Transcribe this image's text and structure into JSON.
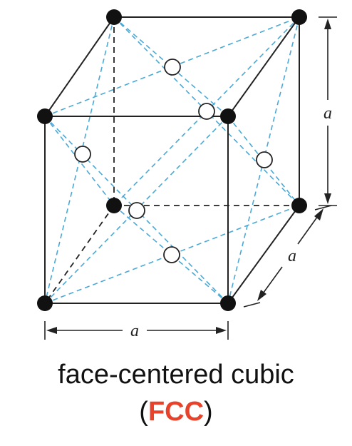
{
  "dimension_labels": {
    "bottom": "a",
    "right_vertical": "a",
    "depth": "a"
  },
  "caption": {
    "line1": "face-centered cubic",
    "open_paren": "(",
    "acronym": "FCC",
    "close_paren": ")"
  },
  "colors": {
    "edges": "#222222",
    "dashed_diagonals": "#4aa9d6",
    "corner_atoms": "#111111",
    "face_atoms_fill": "#ffffff",
    "acronym": "#e8422b"
  }
}
